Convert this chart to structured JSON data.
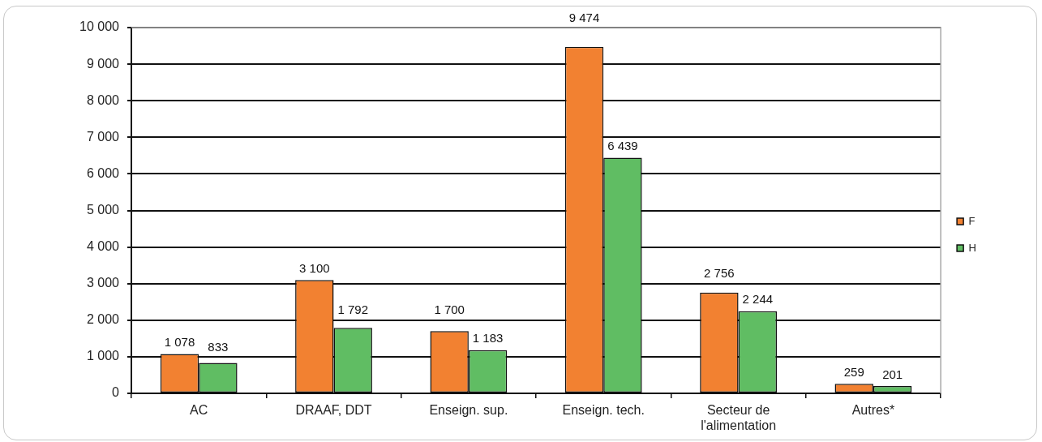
{
  "chart_data": {
    "type": "bar",
    "categories": [
      "AC",
      "DRAAF, DDT",
      "Enseign. sup.",
      "Enseign. tech.",
      "Secteur de l'alimentation",
      "Autres*"
    ],
    "series": [
      {
        "name": "F",
        "color": "#f28131",
        "values": [
          1078,
          3100,
          1700,
          9474,
          2756,
          259
        ],
        "value_labels": [
          "1 078",
          "3 100",
          "1 700",
          "9 474",
          "2 756",
          "259"
        ]
      },
      {
        "name": "H",
        "color": "#60bd63",
        "values": [
          833,
          1792,
          1183,
          6439,
          2244,
          201
        ],
        "value_labels": [
          "833",
          "1 792",
          "1 183",
          "6 439",
          "2 244",
          "201"
        ]
      }
    ],
    "ylim": [
      0,
      10000
    ],
    "yticks": [
      0,
      {
        "value": 1000,
        "label": "1 000"
      },
      {
        "value": 2000,
        "label": "2 000"
      },
      {
        "value": 3000,
        "label": "3 000"
      },
      {
        "value": 4000,
        "label": "4 000"
      },
      {
        "value": 5000,
        "label": "5 000"
      },
      {
        "value": 6000,
        "label": "6 000"
      },
      {
        "value": 7000,
        "label": "7 000"
      },
      {
        "value": 8000,
        "label": "8 000"
      },
      {
        "value": 9000,
        "label": "9 000"
      },
      {
        "value": 10000,
        "label": "10 000"
      }
    ],
    "grid": "y",
    "legend": "right"
  }
}
